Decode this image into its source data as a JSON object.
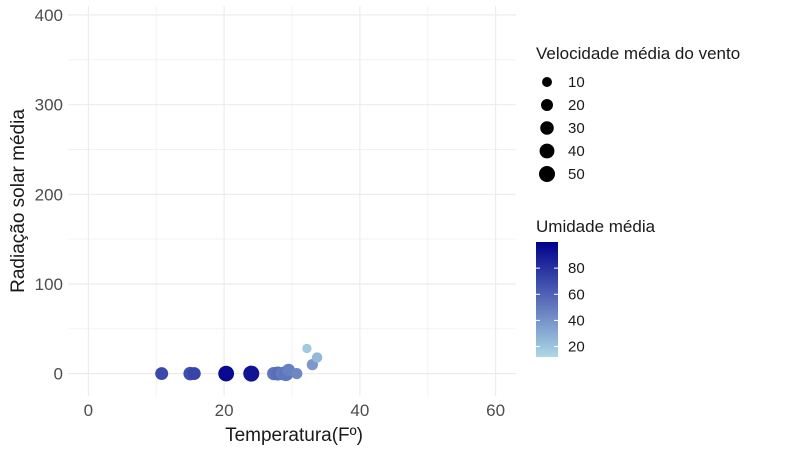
{
  "chart_data": {
    "type": "scatter",
    "title": "",
    "xlabel": "Temperatura(Fº)",
    "ylabel": "Radiação solar média",
    "xlim": [
      -3,
      63
    ],
    "ylim": [
      -25,
      410
    ],
    "x_ticks": [
      0,
      20,
      40,
      60
    ],
    "y_ticks": [
      0,
      100,
      200,
      300,
      400
    ],
    "grid": true,
    "legend_position": "right",
    "size_legend": {
      "title": "Velocidade média do vento",
      "values": [
        10,
        20,
        30,
        40,
        50
      ]
    },
    "color_legend": {
      "title": "Umidade média",
      "ticks": [
        20,
        40,
        60,
        80
      ],
      "low_color": "#add8e6",
      "high_color": "#00008b",
      "min": 12,
      "max": 100
    },
    "points": [
      {
        "x": 10.8,
        "y": 0,
        "wind": 26,
        "humidity": 70
      },
      {
        "x": 15.0,
        "y": 0,
        "wind": 30,
        "humidity": 68
      },
      {
        "x": 15.6,
        "y": 0,
        "wind": 26,
        "humidity": 72
      },
      {
        "x": 20.3,
        "y": 0,
        "wind": 48,
        "humidity": 96
      },
      {
        "x": 24.0,
        "y": 0,
        "wind": 50,
        "humidity": 92
      },
      {
        "x": 27.3,
        "y": 0,
        "wind": 28,
        "humidity": 52
      },
      {
        "x": 27.9,
        "y": 0,
        "wind": 34,
        "humidity": 55
      },
      {
        "x": 28.6,
        "y": 0,
        "wind": 28,
        "humidity": 50
      },
      {
        "x": 29.1,
        "y": 0,
        "wind": 42,
        "humidity": 52
      },
      {
        "x": 29.5,
        "y": 4,
        "wind": 24,
        "humidity": 48
      },
      {
        "x": 30.7,
        "y": 0,
        "wind": 16,
        "humidity": 45
      },
      {
        "x": 33.0,
        "y": 10,
        "wind": 16,
        "humidity": 38
      },
      {
        "x": 33.7,
        "y": 18,
        "wind": 12,
        "humidity": 25
      },
      {
        "x": 32.2,
        "y": 28,
        "wind": 8,
        "humidity": 18
      }
    ]
  }
}
